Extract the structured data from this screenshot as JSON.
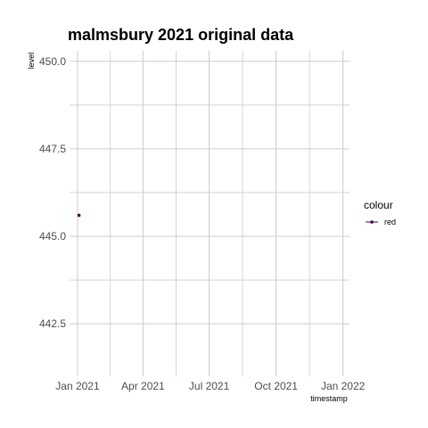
{
  "chart_data": {
    "type": "line",
    "title": "malmsbury 2021 original data",
    "xlabel": "timestamp",
    "ylabel": "level",
    "x_tick_labels": [
      "Jan 2021",
      "Apr 2021",
      "Jul 2021",
      "Oct 2021",
      "Jan 2022"
    ],
    "y_tick_labels": [
      "442.5",
      "445.0",
      "447.5",
      "450.0"
    ],
    "xlim": [
      "2020-12-21",
      "2022-01-10"
    ],
    "ylim": [
      441.0,
      450.3
    ],
    "x_ticks": [
      "2021-01-01",
      "2021-04-01",
      "2021-07-01",
      "2021-10-01",
      "2022-01-01"
    ],
    "y_ticks": [
      442.5,
      445.0,
      447.5,
      450.0
    ],
    "grid": true,
    "legend": {
      "title": "colour",
      "placement": "right"
    },
    "series": [
      {
        "name": "red",
        "color": "#440154",
        "x": [
          "2021-01-03"
        ],
        "y": [
          445.6
        ]
      }
    ]
  }
}
